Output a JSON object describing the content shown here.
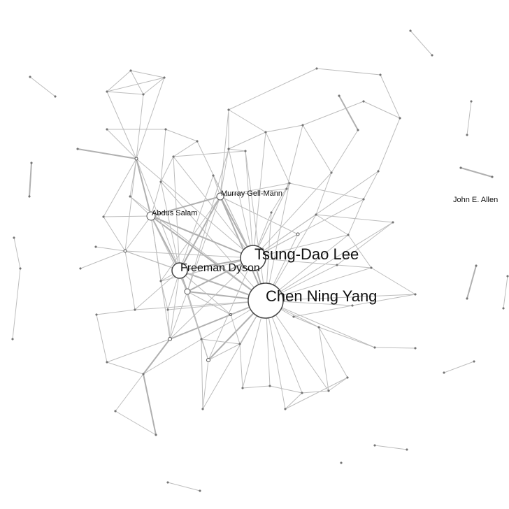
{
  "graph": {
    "labels": {
      "chen": "Chen Ning Yang",
      "lee": "Tsung-Dao Lee",
      "dyson": "Freeman Dyson",
      "gellmann": "Murray Gell-Mann",
      "salam": "Abdus Salam",
      "allen": "John E. Allen"
    },
    "colors": {
      "edge": "#bdbdbd",
      "node_stroke": "#555555",
      "node_fill": "#ffffff",
      "label": "#111111"
    }
  }
}
